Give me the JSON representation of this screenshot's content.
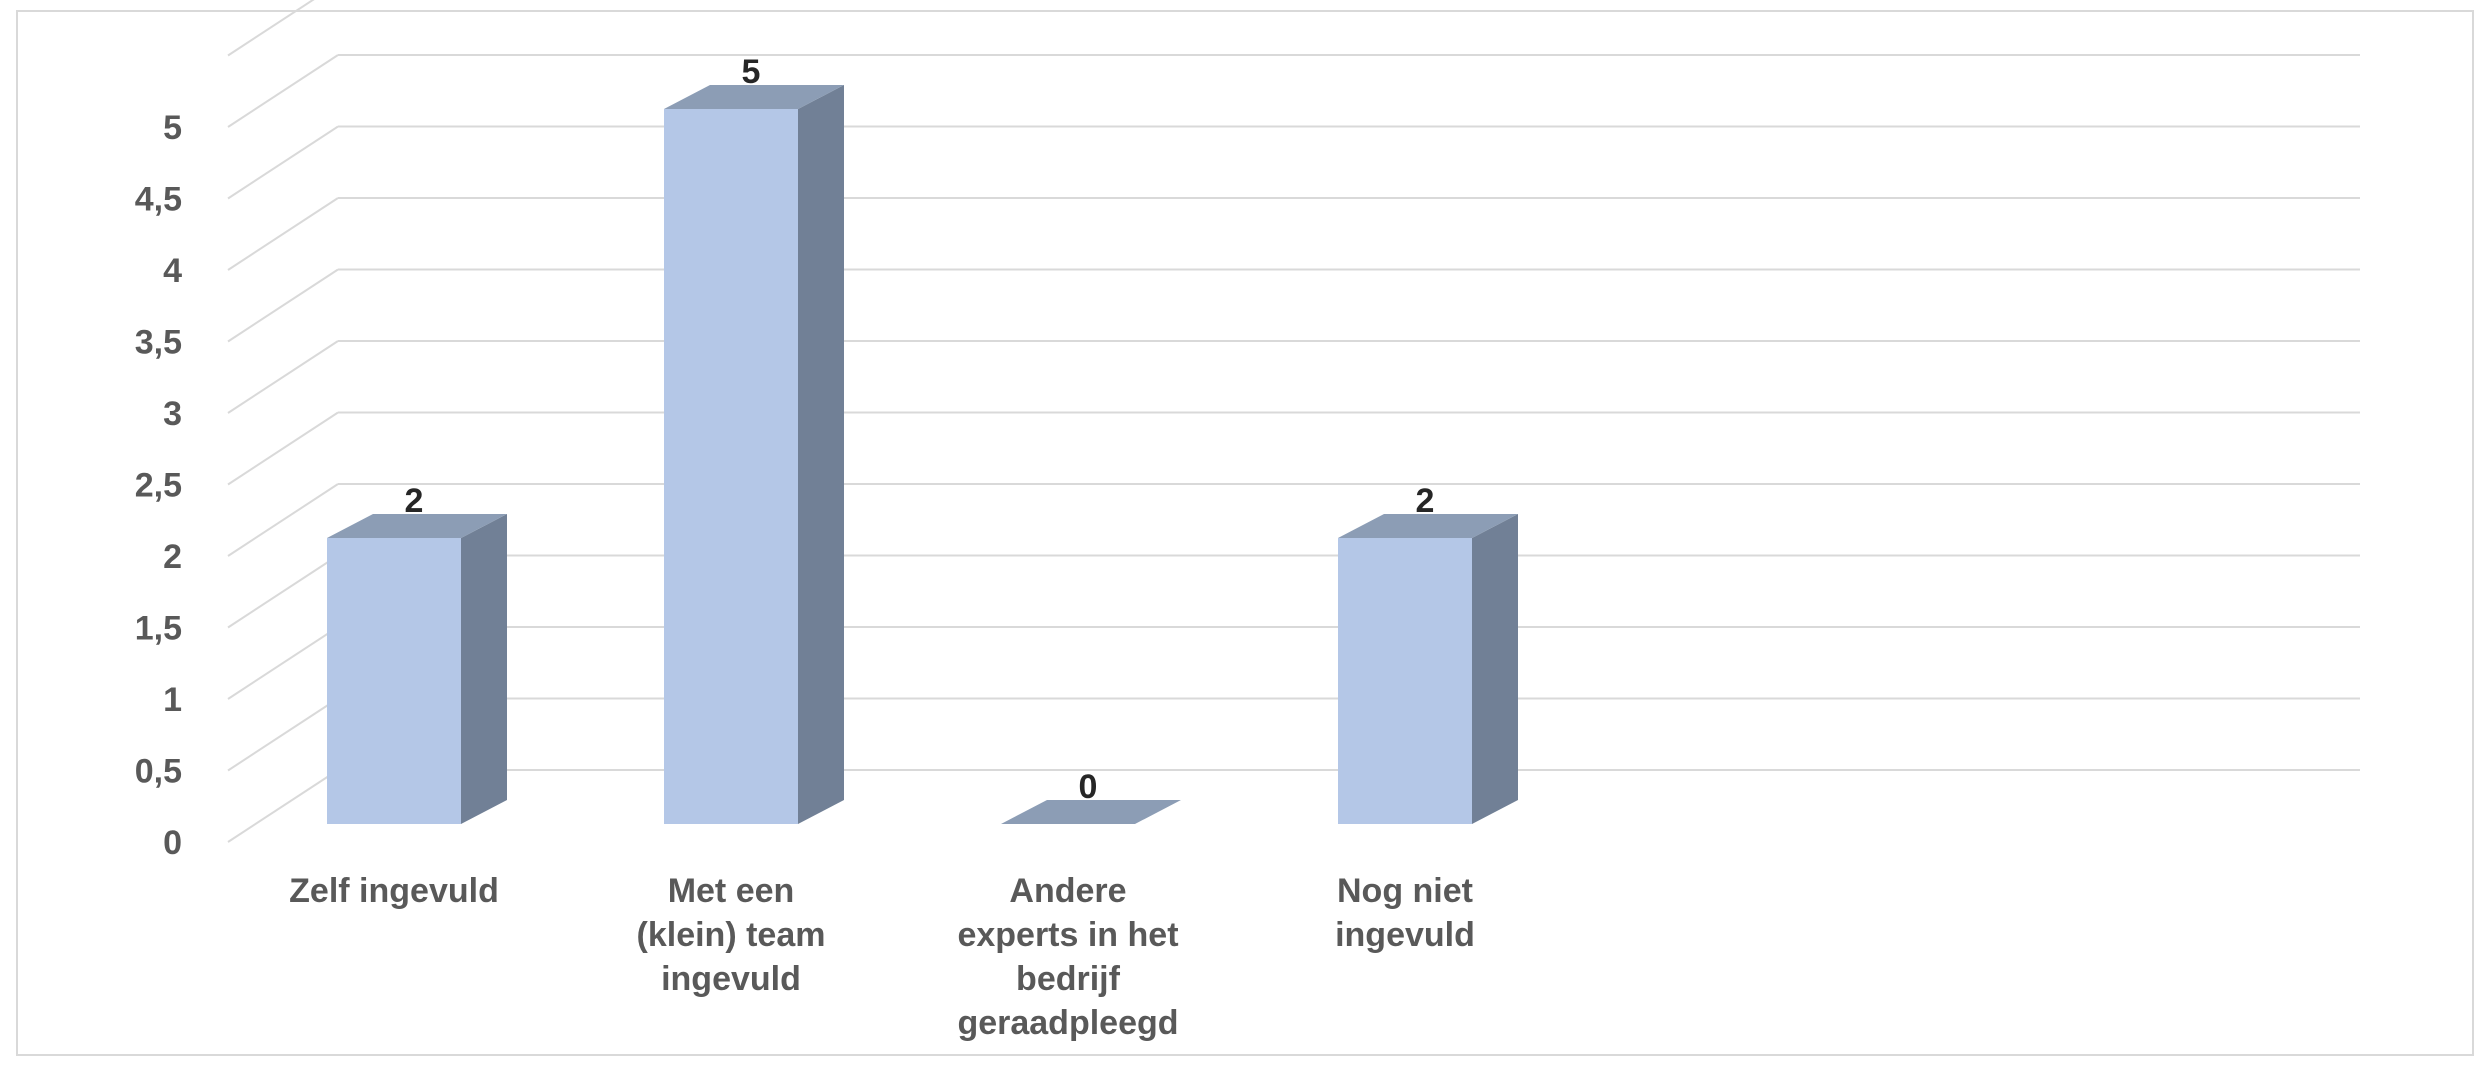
{
  "chart_data": {
    "type": "bar",
    "style": "3d-column",
    "categories": [
      [
        "Zelf ingevuld"
      ],
      [
        "Met een",
        "(klein) team",
        "ingevuld"
      ],
      [
        "Andere",
        "experts in het",
        "bedrijf",
        "geraadpleegd"
      ],
      [
        "Nog niet",
        "ingevuld"
      ]
    ],
    "values": [
      2,
      5,
      0,
      2
    ],
    "data_labels": [
      "2",
      "5",
      "0",
      "2"
    ],
    "y_ticks": [
      "0",
      "0,5",
      "1",
      "1,5",
      "2",
      "2,5",
      "3",
      "3,5",
      "4",
      "4,5",
      "5"
    ],
    "ylim": [
      0,
      5.5
    ],
    "grid": true,
    "legend": "none",
    "colors": {
      "front": "#b4c7e7",
      "side": "#718096",
      "top": "#8c9db5",
      "grid": "#d9d9d9",
      "tick_text": "#595959",
      "label_text": "#262626"
    }
  }
}
